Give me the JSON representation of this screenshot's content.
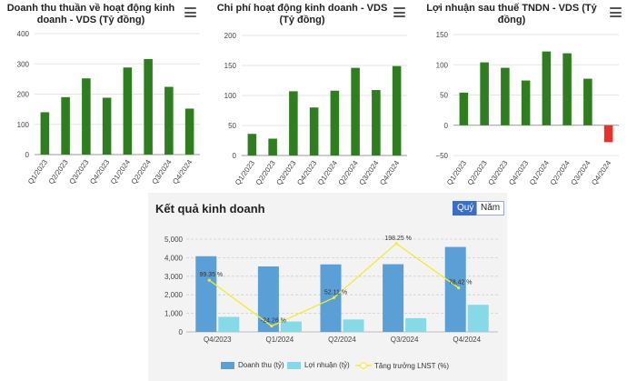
{
  "charts": {
    "revenue": {
      "title_line1": "Doanh thu thuần về hoạt động kinh",
      "title_line2": "doanh - VDS (Tỷ đồng)"
    },
    "expense": {
      "title_line1": "Chi phí hoạt động kinh doanh - VDS",
      "title_line2": "(Tỷ đồng)"
    },
    "profit": {
      "title_line1": "Lợi nhuận sau thuế TNDN - VDS (Tỷ",
      "title_line2": "đồng)"
    },
    "results": {
      "title": "Kết quả kinh doanh",
      "toggle_quarter": "Quý",
      "toggle_year": "Năm"
    }
  },
  "colors": {
    "bar_green": "#2e7d1e",
    "bar_red": "#e8302c",
    "revenue_blue": "#5a9fd6",
    "profit_cyan": "#86d9e6",
    "growth_yellow": "#f1ea3a"
  },
  "chart_data": [
    {
      "type": "bar",
      "title": "Doanh thu thuần về hoạt động kinh doanh - VDS (Tỷ đồng)",
      "categories": [
        "Q1/2023",
        "Q2/2023",
        "Q3/2023",
        "Q4/2023",
        "Q1/2024",
        "Q2/2024",
        "Q3/2024",
        "Q4/2024"
      ],
      "values": [
        140,
        190,
        252,
        188,
        288,
        316,
        224,
        152
      ],
      "ylim": [
        0,
        400
      ],
      "yticks": [
        0,
        100,
        200,
        300,
        400
      ],
      "ytick_labels": [
        "0",
        "100",
        "200",
        "300",
        "400"
      ]
    },
    {
      "type": "bar",
      "title": "Chi phí hoạt động kinh doanh - VDS (Tỷ đồng)",
      "categories": [
        "Q1/2023",
        "Q2/2023",
        "Q3/2023",
        "Q4/2023",
        "Q1/2024",
        "Q2/2024",
        "Q3/2024",
        "Q4/2024"
      ],
      "values": [
        36,
        28,
        107,
        80,
        108,
        146,
        109,
        149
      ],
      "ylim": [
        0,
        200
      ],
      "yticks": [
        0,
        50,
        100,
        150,
        200
      ],
      "ytick_labels": [
        "0",
        "50",
        "100",
        "150",
        "200"
      ]
    },
    {
      "type": "bar",
      "title": "Lợi nhuận sau thuế TNDN - VDS (Tỷ đồng)",
      "categories": [
        "Q1/2023",
        "Q2/2023",
        "Q3/2023",
        "Q4/2023",
        "Q1/2024",
        "Q2/2024",
        "Q3/2024",
        "Q4/2024"
      ],
      "values": [
        54,
        104,
        95,
        74,
        122,
        119,
        77,
        -28
      ],
      "ylim": [
        -50,
        150
      ],
      "yticks": [
        -50,
        0,
        50,
        100,
        150
      ],
      "ytick_labels": [
        "−50",
        "0",
        "50",
        "100",
        "150"
      ]
    },
    {
      "type": "bar",
      "title": "Kết quả kinh doanh",
      "categories": [
        "Q4/2023",
        "Q1/2024",
        "Q2/2024",
        "Q3/2024",
        "Q4/2024"
      ],
      "ylim": [
        0,
        5000
      ],
      "yticks": [
        0,
        1000,
        2000,
        3000,
        4000,
        5000
      ],
      "ytick_labels": [
        "0",
        "1,000",
        "2,000",
        "3,000",
        "4,000",
        "5,000"
      ],
      "series": [
        {
          "name": "Doanh thu (tỷ)",
          "values": [
            4080,
            3530,
            3640,
            3650,
            4580
          ]
        },
        {
          "name": "Lợi nhuận (tỷ)",
          "values": [
            810,
            560,
            670,
            740,
            1460
          ]
        },
        {
          "name": "Tăng trưởng LNST (%)",
          "type": "line",
          "values": [
            99.35,
            -24.26,
            52.11,
            198.25,
            78.42
          ],
          "labels": [
            "99.35 %",
            "-24.26 %",
            "52.11 %",
            "198.25 %",
            "78.42 %"
          ]
        }
      ]
    }
  ]
}
